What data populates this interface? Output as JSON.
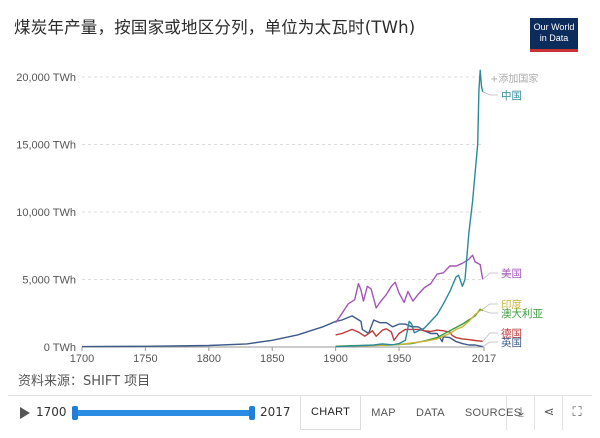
{
  "header": {
    "title": "煤炭年产量，按国家或地区分列，单位为太瓦时(TWh)",
    "logo_line1": "Our World",
    "logo_line2": "in Data"
  },
  "source_note": "资料来源：SHIFT 项目",
  "add_country_label": "+添加国家",
  "footer": {
    "start_year": "1700",
    "end_year": "2017",
    "tabs": [
      "CHART",
      "MAP",
      "DATA",
      "SOURCES"
    ],
    "active_tab": "CHART"
  },
  "colors": {
    "china": "#2b8a9a",
    "usa": "#a356b8",
    "india": "#c9b53a",
    "australia": "#3c9a3c",
    "germany": "#c0393b",
    "uk": "#3d5a8a",
    "accent": "#2a8de3"
  },
  "chart_data": {
    "type": "line",
    "title": "煤炭年产量，按国家或地区分列，单位为太瓦时(TWh)",
    "xlabel": "",
    "ylabel": "",
    "xlim": [
      1700,
      2017
    ],
    "ylim": [
      0,
      20000
    ],
    "x_ticks": [
      1700,
      1750,
      1800,
      1850,
      1900,
      1950,
      2017
    ],
    "y_ticks": [
      0,
      5000,
      10000,
      15000,
      20000
    ],
    "y_tick_labels": [
      "0 TWh",
      "5,000 TWh",
      "10,000 TWh",
      "15,000 TWh",
      "20,000 TWh"
    ],
    "grid": true,
    "series": [
      {
        "name": "中国",
        "key": "china",
        "x": [
          1900,
          1915,
          1930,
          1937,
          1945,
          1950,
          1955,
          1958,
          1960,
          1962,
          1970,
          1975,
          1980,
          1985,
          1990,
          1995,
          1997,
          2000,
          2002,
          2005,
          2008,
          2010,
          2012,
          2013,
          2014,
          2015,
          2016
        ],
        "values": [
          20,
          80,
          150,
          230,
          160,
          250,
          500,
          1900,
          1700,
          1050,
          1400,
          1900,
          2400,
          3200,
          4100,
          5200,
          5300,
          4500,
          5000,
          8400,
          10800,
          12900,
          15000,
          19000,
          20500,
          19300,
          18900
        ]
      },
      {
        "name": "美国",
        "key": "usa",
        "x": [
          1900,
          1905,
          1910,
          1915,
          1918,
          1920,
          1922,
          1925,
          1928,
          1932,
          1935,
          1940,
          1944,
          1947,
          1950,
          1954,
          1957,
          1961,
          1965,
          1970,
          1975,
          1980,
          1985,
          1990,
          1995,
          2000,
          2005,
          2008,
          2010,
          2012,
          2014,
          2016
        ],
        "values": [
          1800,
          2500,
          3200,
          3500,
          4700,
          4200,
          3400,
          4500,
          4300,
          2900,
          3300,
          3900,
          4500,
          4800,
          4000,
          3300,
          4100,
          3400,
          3900,
          4400,
          4700,
          5400,
          5500,
          6000,
          6000,
          6200,
          6500,
          6800,
          6300,
          6200,
          6100,
          5000
        ]
      },
      {
        "name": "印度",
        "key": "india",
        "x": [
          1900,
          1920,
          1940,
          1950,
          1960,
          1970,
          1980,
          1990,
          1995,
          2000,
          2005,
          2010,
          2014,
          2016
        ],
        "values": [
          30,
          80,
          140,
          180,
          300,
          420,
          600,
          1000,
          1300,
          1500,
          1900,
          2400,
          2700,
          2800
        ]
      },
      {
        "name": "澳大利亚",
        "key": "australia",
        "x": [
          1900,
          1920,
          1940,
          1950,
          1960,
          1970,
          1980,
          1990,
          2000,
          2005,
          2010,
          2014,
          2016
        ],
        "values": [
          60,
          120,
          130,
          180,
          250,
          450,
          700,
          1200,
          1700,
          2000,
          2300,
          2800,
          2700
        ]
      },
      {
        "name": "德国",
        "key": "germany",
        "x": [
          1900,
          1905,
          1913,
          1918,
          1923,
          1929,
          1932,
          1937,
          1940,
          1944,
          1946,
          1950,
          1955,
          1960,
          1965,
          1970,
          1975,
          1980,
          1985,
          1990,
          1992,
          1995,
          2000,
          2005,
          2010,
          2016
        ],
        "values": [
          900,
          1000,
          1300,
          1100,
          800,
          1200,
          800,
          1250,
          1350,
          1100,
          500,
          1000,
          1300,
          1300,
          1300,
          1200,
          1150,
          1250,
          1200,
          1100,
          850,
          700,
          600,
          550,
          480,
          420
        ]
      },
      {
        "name": "英国",
        "key": "uk",
        "x": [
          1700,
          1750,
          1800,
          1830,
          1850,
          1870,
          1880,
          1890,
          1900,
          1905,
          1913,
          1920,
          1921,
          1926,
          1930,
          1935,
          1940,
          1945,
          1950,
          1955,
          1960,
          1965,
          1970,
          1975,
          1980,
          1984,
          1985,
          1990,
          1995,
          2000,
          2005,
          2010,
          2016
        ],
        "values": [
          30,
          50,
          110,
          230,
          500,
          900,
          1200,
          1500,
          1900,
          2000,
          2300,
          1900,
          1300,
          1000,
          2000,
          1800,
          1800,
          1500,
          1700,
          1700,
          1500,
          1500,
          1200,
          1000,
          1000,
          400,
          750,
          700,
          400,
          250,
          150,
          150,
          30
        ]
      }
    ],
    "line_labels": [
      {
        "key": "china",
        "text": "中国"
      },
      {
        "key": "usa",
        "text": "美国"
      },
      {
        "key": "india",
        "text": "印度"
      },
      {
        "key": "australia",
        "text": "澳大利亚"
      },
      {
        "key": "germany",
        "text": "德国"
      },
      {
        "key": "uk",
        "text": "英国"
      }
    ]
  }
}
